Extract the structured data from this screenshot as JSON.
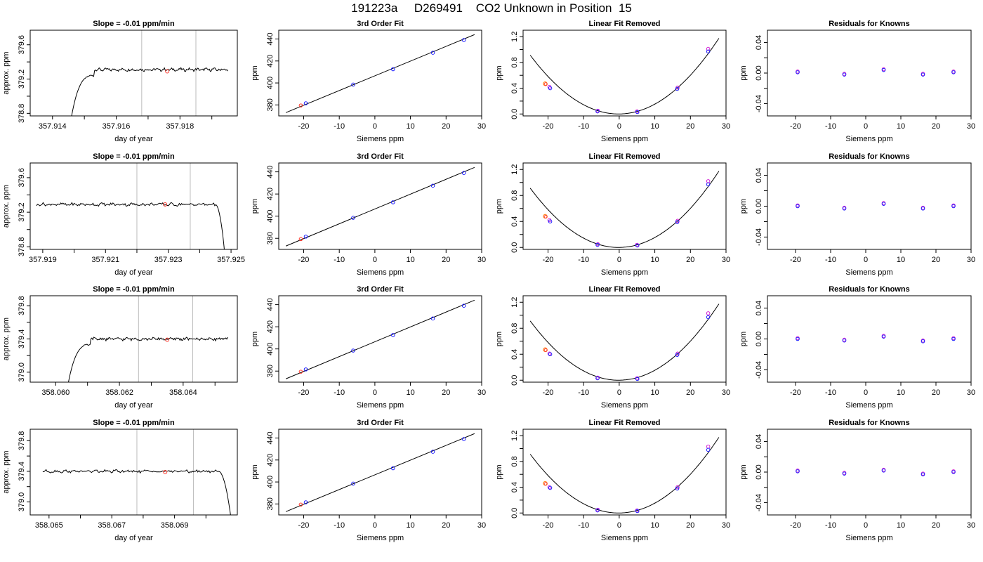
{
  "page_title": "191223a     D269491    CO2 Unknown in Position  15",
  "chart_data": [
    {
      "id": "r1-trace",
      "type": "line",
      "title": "Slope =  -0.01  ppm/min",
      "xlabel": "day of year",
      "ylabel": "approx. ppm",
      "xlim": [
        357.9133,
        357.9198
      ],
      "ylim": [
        378.77,
        379.77
      ],
      "xticks": [
        357.914,
        357.915,
        357.916,
        357.917,
        357.918,
        357.919
      ],
      "xtick_labels": [
        "357.914",
        "",
        "357.916",
        "",
        "357.918",
        ""
      ],
      "yticks": [
        378.8,
        379.0,
        379.2,
        379.4,
        379.6
      ],
      "ytick_labels": [
        "378.8",
        "",
        "379.2",
        "",
        "379.6"
      ],
      "vlines": [
        357.9168,
        357.9185
      ],
      "trace": {
        "start": 357.9146,
        "end": 357.9195,
        "rise_end": 357.9153,
        "base": 378.77,
        "level": 379.31,
        "wiggle": 0.015,
        "end_drop": false
      },
      "marker": {
        "x": 357.9176,
        "y": 379.29
      }
    },
    {
      "id": "r1-fit",
      "type": "scatter",
      "title": "3rd Order Fit",
      "xlabel": "Siemens ppm",
      "ylabel": "ppm",
      "xlim": [
        -27,
        30
      ],
      "ylim": [
        370,
        448
      ],
      "xticks": [
        -20,
        -10,
        0,
        10,
        20,
        30
      ],
      "yticks": [
        380,
        400,
        420,
        440
      ],
      "points": [
        {
          "x": -19.4,
          "y": 381.5
        },
        {
          "x": -6.1,
          "y": 398.5
        },
        {
          "x": 5.1,
          "y": 412.5
        },
        {
          "x": 16.3,
          "y": 427.5
        },
        {
          "x": 25.0,
          "y": 439.0
        }
      ],
      "unknown": {
        "x": -20.8,
        "y": 379.5
      },
      "line": {
        "x0": -25,
        "y0": 373.0,
        "x1": 28,
        "y1": 444.0
      }
    },
    {
      "id": "r1-lin",
      "type": "scatter",
      "title": "Linear Fit Removed",
      "xlabel": "Siemens ppm",
      "ylabel": "ppm",
      "xlim": [
        -27,
        30
      ],
      "ylim": [
        -0.03,
        1.3
      ],
      "xticks": [
        -20,
        -10,
        0,
        10,
        20,
        30
      ],
      "yticks": [
        0.0,
        0.2,
        0.4,
        0.6,
        0.8,
        1.0,
        1.2
      ],
      "ytick_labels": [
        "0.0",
        "",
        "0.4",
        "",
        "0.8",
        "",
        "1.2"
      ],
      "curve": {
        "x0": -25,
        "x1": 28,
        "a": 0.00148,
        "b": 0.0005,
        "c": 0.0
      },
      "points_blue": [
        {
          "x": -19.4,
          "y": 0.4
        },
        {
          "x": -6.1,
          "y": 0.04
        },
        {
          "x": 5.1,
          "y": 0.03
        },
        {
          "x": 16.3,
          "y": 0.39
        },
        {
          "x": 25.0,
          "y": 0.97
        }
      ],
      "points_magenta": [
        {
          "x": -19.6,
          "y": 0.42
        },
        {
          "x": -6.0,
          "y": 0.05
        },
        {
          "x": 5.0,
          "y": 0.04
        },
        {
          "x": 16.4,
          "y": 0.41
        },
        {
          "x": 25.0,
          "y": 1.01
        }
      ],
      "unknown": {
        "x": -20.8,
        "y": 0.47
      }
    },
    {
      "id": "r1-res",
      "type": "scatter",
      "title": "Residuals for Knowns",
      "xlabel": "Siemens ppm",
      "ylabel": "ppm",
      "xlim": [
        -28,
        30
      ],
      "ylim": [
        -0.056,
        0.056
      ],
      "xticks": [
        -20,
        -10,
        0,
        10,
        20,
        30
      ],
      "yticks": [
        -0.04,
        -0.02,
        0.0,
        0.02,
        0.04
      ],
      "ytick_labels": [
        "-0.04",
        "",
        "0.00",
        "",
        "0.04"
      ],
      "points_blue": [
        {
          "x": -19.4,
          "y": 0.001
        },
        {
          "x": -6.1,
          "y": -0.002
        },
        {
          "x": 5.1,
          "y": 0.004
        },
        {
          "x": 16.3,
          "y": -0.002
        },
        {
          "x": 25.0,
          "y": 0.001
        }
      ],
      "points_magenta": [
        {
          "x": -19.4,
          "y": 0.002
        },
        {
          "x": -6.1,
          "y": -0.001
        },
        {
          "x": 5.1,
          "y": 0.005
        },
        {
          "x": 16.3,
          "y": -0.001
        },
        {
          "x": 25.0,
          "y": 0.002
        }
      ]
    },
    {
      "id": "r2-trace",
      "type": "line",
      "title": "Slope =  -0.01  ppm/min",
      "xlabel": "day of year",
      "ylabel": "approx. ppm",
      "xlim": [
        357.9186,
        357.9252
      ],
      "ylim": [
        378.77,
        379.77
      ],
      "xticks": [
        357.919,
        357.92,
        357.921,
        357.922,
        357.923,
        357.924,
        357.925
      ],
      "xtick_labels": [
        "357.919",
        "",
        "357.921",
        "",
        "357.923",
        "",
        "357.925"
      ],
      "yticks": [
        378.8,
        379.0,
        379.2,
        379.4,
        379.6
      ],
      "ytick_labels": [
        "378.8",
        "",
        "379.2",
        "",
        "379.6"
      ],
      "vlines": [
        357.922,
        357.9237
      ],
      "trace": {
        "start": 357.9188,
        "end": 357.9248,
        "rise_end": null,
        "base": 378.77,
        "level": 379.29,
        "wiggle": 0.015,
        "end_drop": true,
        "drop_start": 357.9245
      },
      "marker": {
        "x": 357.9229,
        "y": 379.29
      }
    },
    {
      "id": "r2-fit",
      "type": "scatter",
      "title": "3rd Order Fit",
      "xlabel": "Siemens ppm",
      "ylabel": "ppm",
      "xlim": [
        -27,
        30
      ],
      "ylim": [
        370,
        448
      ],
      "xticks": [
        -20,
        -10,
        0,
        10,
        20,
        30
      ],
      "yticks": [
        380,
        400,
        420,
        440
      ],
      "points": [
        {
          "x": -19.4,
          "y": 381.5
        },
        {
          "x": -6.1,
          "y": 398.5
        },
        {
          "x": 5.1,
          "y": 412.5
        },
        {
          "x": 16.3,
          "y": 427.5
        },
        {
          "x": 25.0,
          "y": 439.0
        }
      ],
      "unknown": {
        "x": -20.8,
        "y": 379.3
      },
      "line": {
        "x0": -25,
        "y0": 373.0,
        "x1": 28,
        "y1": 444.0
      }
    },
    {
      "id": "r2-lin",
      "type": "scatter",
      "title": "Linear Fit Removed",
      "xlabel": "Siemens ppm",
      "ylabel": "ppm",
      "xlim": [
        -27,
        30
      ],
      "ylim": [
        -0.03,
        1.3
      ],
      "xticks": [
        -20,
        -10,
        0,
        10,
        20,
        30
      ],
      "yticks": [
        0.0,
        0.2,
        0.4,
        0.6,
        0.8,
        1.0,
        1.2
      ],
      "ytick_labels": [
        "0.0",
        "",
        "0.4",
        "",
        "0.8",
        "",
        "1.2"
      ],
      "curve": {
        "x0": -25,
        "x1": 28,
        "a": 0.00148,
        "b": 0.0005,
        "c": 0.0
      },
      "points_blue": [
        {
          "x": -19.4,
          "y": 0.4
        },
        {
          "x": -6.1,
          "y": 0.04
        },
        {
          "x": 5.1,
          "y": 0.03
        },
        {
          "x": 16.3,
          "y": 0.39
        },
        {
          "x": 25.0,
          "y": 0.97
        }
      ],
      "points_magenta": [
        {
          "x": -19.6,
          "y": 0.42
        },
        {
          "x": -6.0,
          "y": 0.05
        },
        {
          "x": 5.0,
          "y": 0.04
        },
        {
          "x": 16.4,
          "y": 0.41
        },
        {
          "x": 25.0,
          "y": 1.02
        }
      ],
      "unknown": {
        "x": -20.8,
        "y": 0.48
      }
    },
    {
      "id": "r2-res",
      "type": "scatter",
      "title": "Residuals for Knowns",
      "xlabel": "Siemens ppm",
      "ylabel": "ppm",
      "xlim": [
        -28,
        30
      ],
      "ylim": [
        -0.056,
        0.056
      ],
      "xticks": [
        -20,
        -10,
        0,
        10,
        20,
        30
      ],
      "yticks": [
        -0.04,
        -0.02,
        0.0,
        0.02,
        0.04
      ],
      "ytick_labels": [
        "-0.04",
        "",
        "0.00",
        "",
        "0.04"
      ],
      "points_blue": [
        {
          "x": -19.4,
          "y": 0.0
        },
        {
          "x": -6.1,
          "y": -0.003
        },
        {
          "x": 5.1,
          "y": 0.003
        },
        {
          "x": 16.3,
          "y": -0.003
        },
        {
          "x": 25.0,
          "y": 0.0
        }
      ],
      "points_magenta": [
        {
          "x": -19.4,
          "y": 0.001
        },
        {
          "x": -6.1,
          "y": -0.002
        },
        {
          "x": 5.1,
          "y": 0.004
        },
        {
          "x": 16.3,
          "y": -0.002
        },
        {
          "x": 25.0,
          "y": 0.001
        }
      ]
    },
    {
      "id": "r3-trace",
      "type": "line",
      "title": "Slope =  -0.01  ppm/min",
      "xlabel": "day of year",
      "ylabel": "approx. ppm",
      "xlim": [
        358.0592,
        358.0657
      ],
      "ylim": [
        378.88,
        379.92
      ],
      "xticks": [
        358.06,
        358.061,
        358.062,
        358.063,
        358.064,
        358.065
      ],
      "xtick_labels": [
        "358.060",
        "",
        "358.062",
        "",
        "358.064",
        ""
      ],
      "yticks": [
        379.0,
        379.2,
        379.4,
        379.6,
        379.8
      ],
      "ytick_labels": [
        "379.0",
        "",
        "379.4",
        "",
        "379.8"
      ],
      "vlines": [
        358.0626,
        358.0643
      ],
      "trace": {
        "start": 358.0604,
        "end": 358.0654,
        "rise_end": 358.0611,
        "base": 378.88,
        "level": 379.4,
        "wiggle": 0.015,
        "end_drop": false
      },
      "marker": {
        "x": 358.0635,
        "y": 379.39
      }
    },
    {
      "id": "r3-fit",
      "type": "scatter",
      "title": "3rd Order Fit",
      "xlabel": "Siemens ppm",
      "ylabel": "ppm",
      "xlim": [
        -27,
        30
      ],
      "ylim": [
        370,
        448
      ],
      "xticks": [
        -20,
        -10,
        0,
        10,
        20,
        30
      ],
      "yticks": [
        380,
        400,
        420,
        440
      ],
      "points": [
        {
          "x": -19.4,
          "y": 381.5
        },
        {
          "x": -6.1,
          "y": 398.5
        },
        {
          "x": 5.1,
          "y": 412.5
        },
        {
          "x": 16.3,
          "y": 427.5
        },
        {
          "x": 25.0,
          "y": 439.0
        }
      ],
      "unknown": {
        "x": -20.8,
        "y": 379.4
      },
      "line": {
        "x0": -25,
        "y0": 373.0,
        "x1": 28,
        "y1": 444.0
      }
    },
    {
      "id": "r3-lin",
      "type": "scatter",
      "title": "Linear Fit Removed",
      "xlabel": "Siemens ppm",
      "ylabel": "ppm",
      "xlim": [
        -27,
        30
      ],
      "ylim": [
        -0.03,
        1.3
      ],
      "xticks": [
        -20,
        -10,
        0,
        10,
        20,
        30
      ],
      "yticks": [
        0.0,
        0.2,
        0.4,
        0.6,
        0.8,
        1.0,
        1.2
      ],
      "ytick_labels": [
        "0.0",
        "",
        "0.4",
        "",
        "0.8",
        "",
        "1.2"
      ],
      "curve": {
        "x0": -25,
        "x1": 28,
        "a": 0.00148,
        "b": 0.0005,
        "c": 0.0
      },
      "points_blue": [
        {
          "x": -19.4,
          "y": 0.4
        },
        {
          "x": -6.1,
          "y": 0.03
        },
        {
          "x": 5.1,
          "y": 0.02
        },
        {
          "x": 16.3,
          "y": 0.39
        },
        {
          "x": 25.0,
          "y": 0.97
        }
      ],
      "points_magenta": [
        {
          "x": -19.6,
          "y": 0.41
        },
        {
          "x": -6.0,
          "y": 0.04
        },
        {
          "x": 5.0,
          "y": 0.03
        },
        {
          "x": 16.4,
          "y": 0.41
        },
        {
          "x": 25.0,
          "y": 1.03
        }
      ],
      "unknown": {
        "x": -20.8,
        "y": 0.47
      }
    },
    {
      "id": "r3-res",
      "type": "scatter",
      "title": "Residuals for Knowns",
      "xlabel": "Siemens ppm",
      "ylabel": "ppm",
      "xlim": [
        -28,
        30
      ],
      "ylim": [
        -0.056,
        0.056
      ],
      "xticks": [
        -20,
        -10,
        0,
        10,
        20,
        30
      ],
      "yticks": [
        -0.04,
        -0.02,
        0.0,
        0.02,
        0.04
      ],
      "ytick_labels": [
        "-0.04",
        "",
        "0.00",
        "",
        "0.04"
      ],
      "points_blue": [
        {
          "x": -19.4,
          "y": 0.0
        },
        {
          "x": -6.1,
          "y": -0.002
        },
        {
          "x": 5.1,
          "y": 0.003
        },
        {
          "x": 16.3,
          "y": -0.003
        },
        {
          "x": 25.0,
          "y": 0.0
        }
      ],
      "points_magenta": [
        {
          "x": -19.4,
          "y": 0.001
        },
        {
          "x": -6.1,
          "y": -0.001
        },
        {
          "x": 5.1,
          "y": 0.004
        },
        {
          "x": 16.3,
          "y": -0.002
        },
        {
          "x": 25.0,
          "y": 0.001
        }
      ]
    },
    {
      "id": "r4-trace",
      "type": "line",
      "title": "Slope =  -0.01  ppm/min",
      "xlabel": "day of year",
      "ylabel": "approx. ppm",
      "xlim": [
        358.0644,
        358.071
      ],
      "ylim": [
        378.83,
        379.95
      ],
      "xticks": [
        358.065,
        358.066,
        358.067,
        358.068,
        358.069,
        358.07
      ],
      "xtick_labels": [
        "358.065",
        "",
        "358.067",
        "",
        "358.069",
        ""
      ],
      "yticks": [
        379.0,
        379.2,
        379.4,
        379.6,
        379.8
      ],
      "ytick_labels": [
        "379.0",
        "",
        "379.4",
        "",
        "379.8"
      ],
      "vlines": [
        358.0678,
        358.0696
      ],
      "trace": {
        "start": 358.0648,
        "end": 358.0708,
        "rise_end": null,
        "base": 378.83,
        "level": 379.4,
        "wiggle": 0.015,
        "end_drop": true,
        "drop_start": 358.0704
      },
      "marker": {
        "x": 358.0687,
        "y": 379.39
      }
    },
    {
      "id": "r4-fit",
      "type": "scatter",
      "title": "3rd Order Fit",
      "xlabel": "Siemens ppm",
      "ylabel": "ppm",
      "xlim": [
        -27,
        30
      ],
      "ylim": [
        370,
        448
      ],
      "xticks": [
        -20,
        -10,
        0,
        10,
        20,
        30
      ],
      "yticks": [
        380,
        400,
        420,
        440
      ],
      "points": [
        {
          "x": -19.4,
          "y": 381.5
        },
        {
          "x": -6.1,
          "y": 398.5
        },
        {
          "x": 5.1,
          "y": 412.5
        },
        {
          "x": 16.3,
          "y": 427.5
        },
        {
          "x": 25.0,
          "y": 439.0
        }
      ],
      "unknown": {
        "x": -20.8,
        "y": 379.4
      },
      "line": {
        "x0": -25,
        "y0": 373.0,
        "x1": 28,
        "y1": 444.0
      }
    },
    {
      "id": "r4-lin",
      "type": "scatter",
      "title": "Linear Fit Removed",
      "xlabel": "Siemens ppm",
      "ylabel": "ppm",
      "xlim": [
        -27,
        30
      ],
      "ylim": [
        -0.03,
        1.3
      ],
      "xticks": [
        -20,
        -10,
        0,
        10,
        20,
        30
      ],
      "yticks": [
        0.0,
        0.2,
        0.4,
        0.6,
        0.8,
        1.0,
        1.2
      ],
      "ytick_labels": [
        "0.0",
        "",
        "0.4",
        "",
        "0.8",
        "",
        "1.2"
      ],
      "curve": {
        "x0": -25,
        "x1": 28,
        "a": 0.00148,
        "b": 0.0005,
        "c": 0.0
      },
      "points_blue": [
        {
          "x": -19.4,
          "y": 0.39
        },
        {
          "x": -6.1,
          "y": 0.04
        },
        {
          "x": 5.1,
          "y": 0.03
        },
        {
          "x": 16.3,
          "y": 0.38
        },
        {
          "x": 25.0,
          "y": 0.98
        }
      ],
      "points_magenta": [
        {
          "x": -19.6,
          "y": 0.4
        },
        {
          "x": -6.0,
          "y": 0.05
        },
        {
          "x": 5.0,
          "y": 0.04
        },
        {
          "x": 16.4,
          "y": 0.4
        },
        {
          "x": 25.0,
          "y": 1.03
        }
      ],
      "unknown": {
        "x": -20.8,
        "y": 0.46
      }
    },
    {
      "id": "r4-res",
      "type": "scatter",
      "title": "Residuals for Knowns",
      "xlabel": "Siemens ppm",
      "ylabel": "ppm",
      "xlim": [
        -28,
        30
      ],
      "ylim": [
        -0.056,
        0.056
      ],
      "xticks": [
        -20,
        -10,
        0,
        10,
        20,
        30
      ],
      "yticks": [
        -0.04,
        -0.02,
        0.0,
        0.02,
        0.04
      ],
      "ytick_labels": [
        "-0.04",
        "",
        "0.00",
        "",
        "0.04"
      ],
      "points_blue": [
        {
          "x": -19.4,
          "y": 0.001
        },
        {
          "x": -6.1,
          "y": -0.002
        },
        {
          "x": 5.1,
          "y": 0.002
        },
        {
          "x": 16.3,
          "y": -0.003
        },
        {
          "x": 25.0,
          "y": 0.0
        }
      ],
      "points_magenta": [
        {
          "x": -19.4,
          "y": 0.002
        },
        {
          "x": -6.1,
          "y": -0.001
        },
        {
          "x": 5.1,
          "y": 0.003
        },
        {
          "x": 16.3,
          "y": -0.002
        },
        {
          "x": 25.0,
          "y": 0.001
        }
      ]
    }
  ]
}
